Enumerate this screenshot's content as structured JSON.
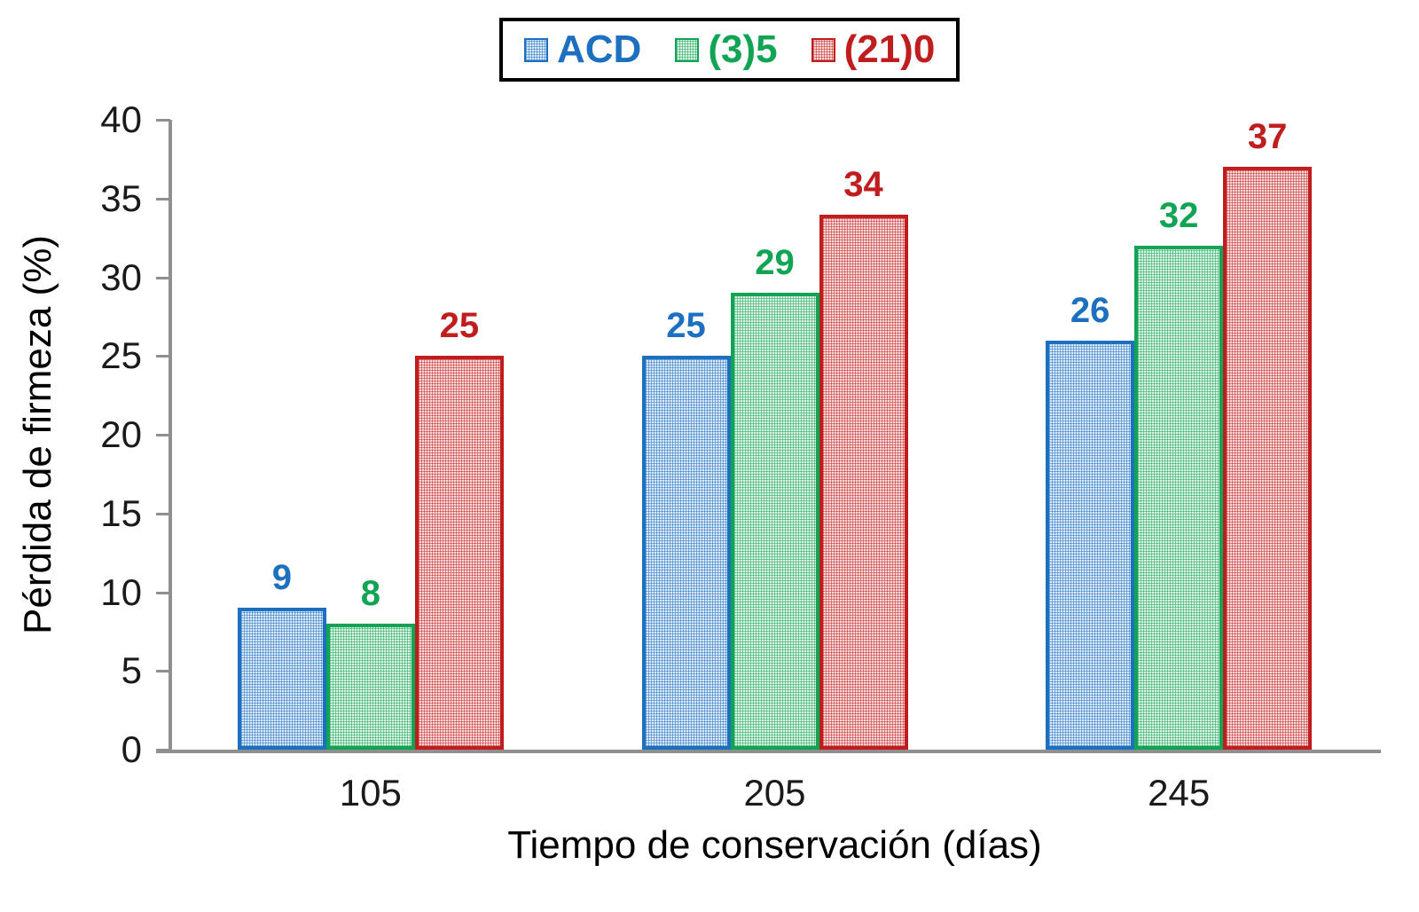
{
  "chart_data": {
    "type": "bar",
    "title": "",
    "categories": [
      "105",
      "205",
      "245"
    ],
    "series": [
      {
        "name": "ACD",
        "values": [
          9,
          25,
          26
        ],
        "color": "#1D6FC0",
        "tint": "#DCE9F7",
        "pattern": "rgba(29,111,192,0.5)"
      },
      {
        "name": "(3)5",
        "values": [
          8,
          29,
          32
        ],
        "color": "#12A455",
        "tint": "#DFF2E6",
        "pattern": "rgba(18,164,85,0.5)"
      },
      {
        "name": "(21)0",
        "values": [
          25,
          34,
          37
        ],
        "color": "#C01E1E",
        "tint": "#F8DCDC",
        "pattern": "rgba(192,30,30,0.5)"
      }
    ],
    "xlabel": "Tiempo de conservación (días)",
    "ylabel": "Pérdida de firmeza (%)",
    "ylim": [
      0,
      40
    ],
    "yticks": [
      0,
      5,
      10,
      15,
      20,
      25,
      30,
      35,
      40
    ],
    "grid": false,
    "legend_position": "top-center",
    "bar_value_labels": true,
    "axis_color": "#8F8F8F",
    "tick_label_color": "#1A1A1A"
  }
}
